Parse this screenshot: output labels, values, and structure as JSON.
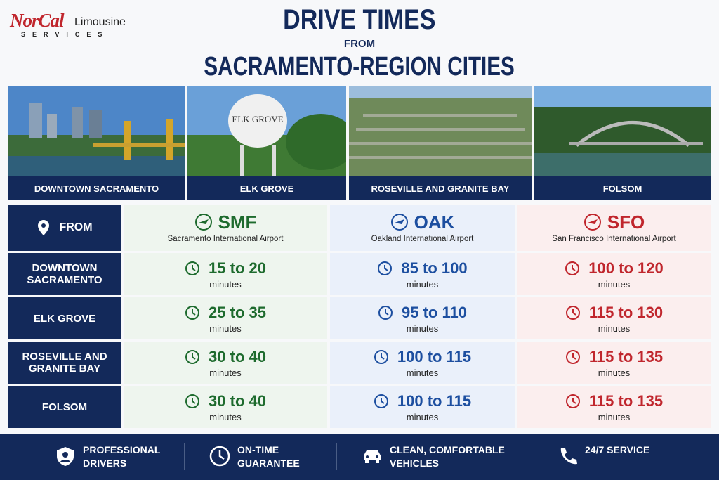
{
  "header": {
    "logo_main": "NorCal",
    "logo_sub": "Limousine",
    "logo_tag": "SERVICES",
    "title_line1": "DRIVE TIMES",
    "title_from": "FROM",
    "title_line2": "SACRAMENTO-REGION CITIES"
  },
  "photos": [
    "DOWNTOWN SACRAMENTO",
    "ELK GROVE",
    "ROSEVILLE AND GRANITE BAY",
    "FOLSOM"
  ],
  "table": {
    "from_label": "FROM",
    "unit": "minutes",
    "airports": [
      {
        "code": "SMF",
        "name": "Sacramento International Airport"
      },
      {
        "code": "OAK",
        "name": "Oakland International Airport"
      },
      {
        "code": "SFO",
        "name": "San Francisco International Airport"
      }
    ],
    "rows": [
      {
        "city": "DOWNTOWN SACRAMENTO",
        "times": [
          "15 to 20",
          "85 to 100",
          "100 to 120"
        ]
      },
      {
        "city": "ELK GROVE",
        "times": [
          "25 to 35",
          "95 to 110",
          "115 to 130"
        ]
      },
      {
        "city": "ROSEVILLE AND GRANITE BAY",
        "times": [
          "30 to 40",
          "100 to 115",
          "115 to 135"
        ]
      },
      {
        "city": "FOLSOM",
        "times": [
          "30 to 40",
          "100 to 115",
          "115 to 135"
        ]
      }
    ]
  },
  "footer": [
    "PROFESSIONAL DRIVERS",
    "ON-TIME GUARANTEE",
    "CLEAN, COMFORTABLE VEHICLES",
    "24/7 SERVICE"
  ]
}
